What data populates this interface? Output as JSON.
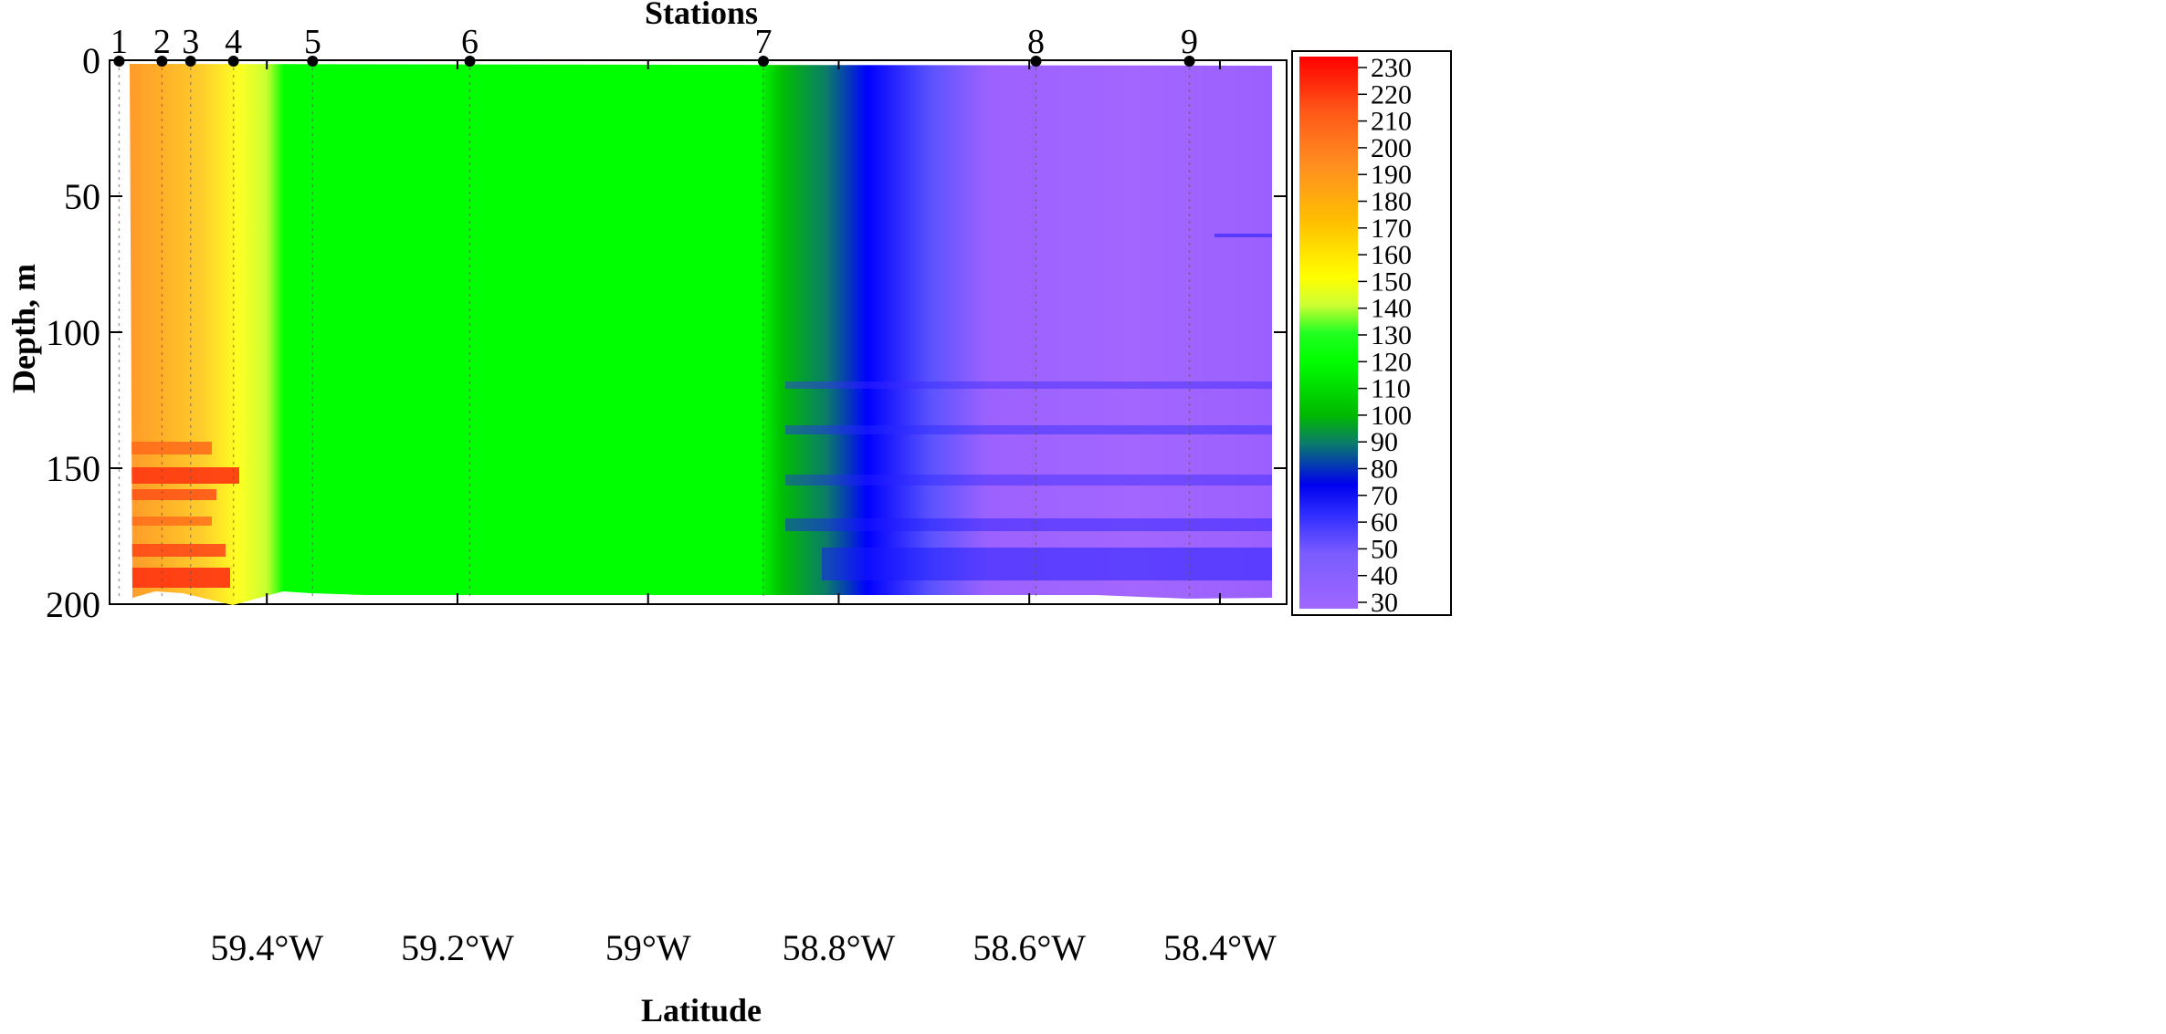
{
  "chart_data": {
    "type": "heatmap",
    "title": "Stations",
    "xlabel": "Latitude",
    "ylabel": "Depth, m",
    "x_ticks": [
      {
        "value": -59.4,
        "label": "59.4°W"
      },
      {
        "value": -59.2,
        "label": "59.2°W"
      },
      {
        "value": -59.0,
        "label": "59°W"
      },
      {
        "value": -58.8,
        "label": "58.8°W"
      },
      {
        "value": -58.6,
        "label": "58.6°W"
      },
      {
        "value": -58.4,
        "label": "58.4°W"
      }
    ],
    "xlim": [
      -59.565,
      -58.33
    ],
    "y_ticks": [
      {
        "value": 0,
        "label": "0"
      },
      {
        "value": 50,
        "label": "50"
      },
      {
        "value": 100,
        "label": "100"
      },
      {
        "value": 150,
        "label": "150"
      },
      {
        "value": 200,
        "label": "200"
      }
    ],
    "ylim": [
      0,
      200
    ],
    "y_inverted": true,
    "stations": [
      {
        "label": "1",
        "lon": -59.555
      },
      {
        "label": "2",
        "lon": -59.51
      },
      {
        "label": "3",
        "lon": -59.48
      },
      {
        "label": "4",
        "lon": -59.435
      },
      {
        "label": "5",
        "lon": -59.352
      },
      {
        "label": "6",
        "lon": -59.187
      },
      {
        "label": "7",
        "lon": -58.879
      },
      {
        "label": "8",
        "lon": -58.593
      },
      {
        "label": "9",
        "lon": -58.432
      }
    ],
    "values_surface_profile": [
      {
        "lon": -59.555,
        "value": 180
      },
      {
        "lon": -59.51,
        "value": 168
      },
      {
        "lon": -59.48,
        "value": 160
      },
      {
        "lon": -59.435,
        "value": 150
      },
      {
        "lon": -59.352,
        "value": 125
      },
      {
        "lon": -59.187,
        "value": 118
      },
      {
        "lon": -58.879,
        "value": 110
      },
      {
        "lon": -58.593,
        "value": 35
      },
      {
        "lon": -58.432,
        "value": 40
      }
    ],
    "colorbar": {
      "min": 30,
      "max": 230,
      "ticks": [
        230,
        220,
        210,
        200,
        190,
        180,
        170,
        160,
        150,
        140,
        130,
        120,
        110,
        100,
        90,
        80,
        70,
        60,
        50,
        40,
        30
      ],
      "stops": [
        {
          "value": 30,
          "color": "#a066ff"
        },
        {
          "value": 50,
          "color": "#7a5cff"
        },
        {
          "value": 65,
          "color": "#2a2aff"
        },
        {
          "value": 75,
          "color": "#0000ee"
        },
        {
          "value": 90,
          "color": "#0a7c6a"
        },
        {
          "value": 100,
          "color": "#00b800"
        },
        {
          "value": 120,
          "color": "#00ff00"
        },
        {
          "value": 130,
          "color": "#22ff22"
        },
        {
          "value": 140,
          "color": "#ccff33"
        },
        {
          "value": 150,
          "color": "#ffff00"
        },
        {
          "value": 170,
          "color": "#ffc000"
        },
        {
          "value": 190,
          "color": "#ff9020"
        },
        {
          "value": 210,
          "color": "#ff5818"
        },
        {
          "value": 230,
          "color": "#ff0000"
        }
      ]
    }
  }
}
